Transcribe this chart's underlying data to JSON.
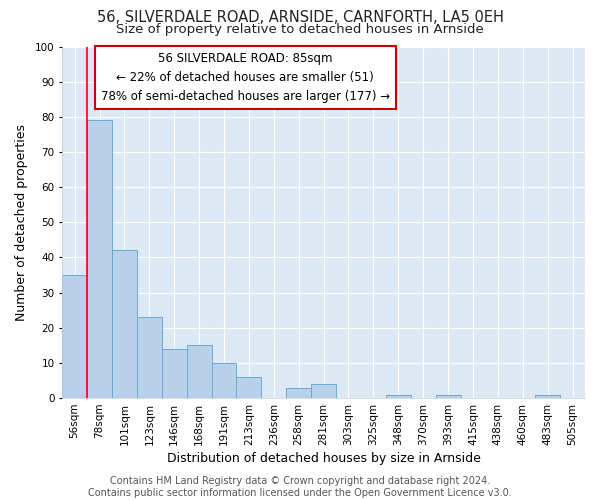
{
  "title1": "56, SILVERDALE ROAD, ARNSIDE, CARNFORTH, LA5 0EH",
  "title2": "Size of property relative to detached houses in Arnside",
  "xlabel": "Distribution of detached houses by size in Arnside",
  "ylabel": "Number of detached properties",
  "bin_labels": [
    "56sqm",
    "78sqm",
    "101sqm",
    "123sqm",
    "146sqm",
    "168sqm",
    "191sqm",
    "213sqm",
    "236sqm",
    "258sqm",
    "281sqm",
    "303sqm",
    "325sqm",
    "348sqm",
    "370sqm",
    "393sqm",
    "415sqm",
    "438sqm",
    "460sqm",
    "483sqm",
    "505sqm"
  ],
  "bar_heights": [
    35,
    79,
    42,
    23,
    14,
    15,
    10,
    6,
    0,
    3,
    4,
    0,
    0,
    1,
    0,
    1,
    0,
    0,
    0,
    1,
    0
  ],
  "bar_color": "#b8d0ea",
  "bar_edge_color": "#6aaad4",
  "bar_linewidth": 0.7,
  "red_line_x": 0.5,
  "ylim": [
    0,
    100
  ],
  "yticks": [
    0,
    10,
    20,
    30,
    40,
    50,
    60,
    70,
    80,
    90,
    100
  ],
  "annotation_lines": [
    "56 SILVERDALE ROAD: 85sqm",
    "← 22% of detached houses are smaller (51)",
    "78% of semi-detached houses are larger (177) →"
  ],
  "annotation_box_color": "#ffffff",
  "annotation_box_edge_color": "#cc0000",
  "footer_lines": [
    "Contains HM Land Registry data © Crown copyright and database right 2024.",
    "Contains public sector information licensed under the Open Government Licence v3.0."
  ],
  "fig_background_color": "#ffffff",
  "plot_background_color": "#dce9f5",
  "grid_color": "#ffffff",
  "title_fontsize": 10.5,
  "subtitle_fontsize": 9.5,
  "axis_label_fontsize": 9,
  "tick_fontsize": 7.5,
  "annotation_fontsize": 8.5,
  "footer_fontsize": 7
}
